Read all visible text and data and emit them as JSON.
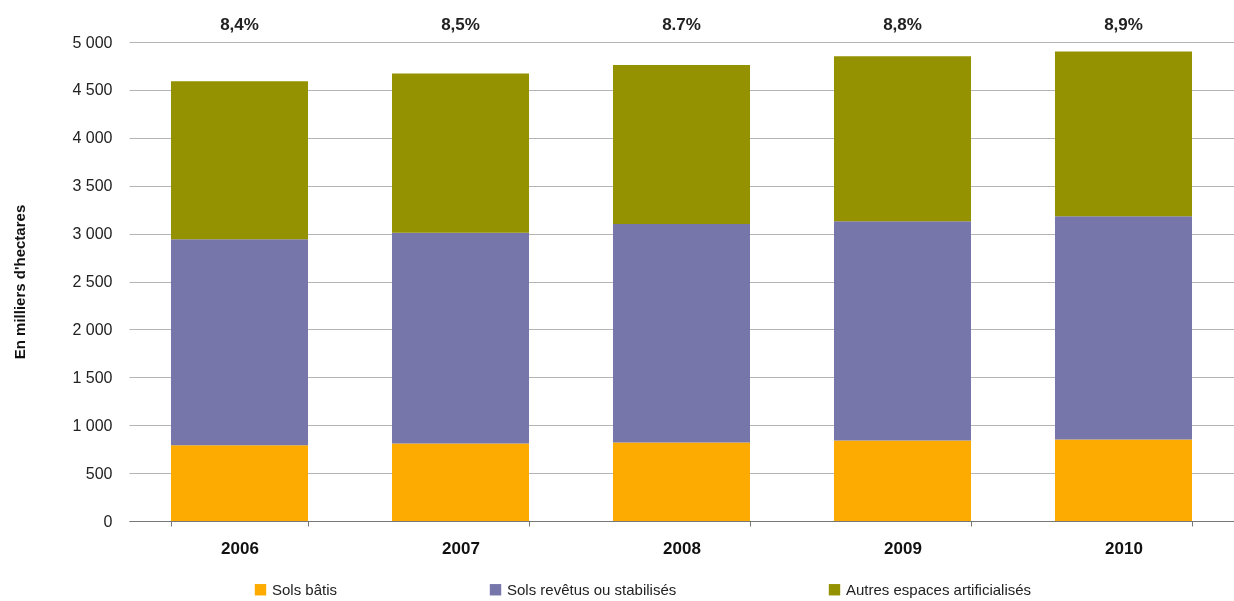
{
  "chart_data": {
    "type": "bar",
    "stacked": true,
    "ylabel": "En milliers d'hectares",
    "categories": [
      "2006",
      "2007",
      "2008",
      "2009",
      "2010"
    ],
    "series": [
      {
        "name": "Sols bâtis",
        "color": "#fdab00",
        "values": [
          790,
          810,
          820,
          840,
          850
        ]
      },
      {
        "name": "Sols revêtus ou stabilisés",
        "color": "#7676aa",
        "values": [
          2150,
          2200,
          2280,
          2290,
          2330
        ]
      },
      {
        "name": "Autres espaces artificialisés",
        "color": "#949200",
        "values": [
          1650,
          1660,
          1660,
          1720,
          1720
        ]
      }
    ],
    "ylim": [
      0,
      5000
    ],
    "yticks": [
      0,
      500,
      {
        "value": 1000,
        "label": "1 000"
      },
      {
        "value": 1500,
        "label": "1 500"
      },
      {
        "value": 2000,
        "label": "2 000"
      },
      {
        "value": 2500,
        "label": "2 500"
      },
      {
        "value": 3000,
        "label": "3 000"
      },
      {
        "value": 3500,
        "label": "3 500"
      },
      {
        "value": 4000,
        "label": "4 000"
      },
      {
        "value": 4500,
        "label": "4 500"
      },
      {
        "value": 5000,
        "label": "5 000"
      }
    ],
    "grid": "y",
    "legend": "bottom",
    "annotations": [
      "8,4%",
      "8,5%",
      "8.7%",
      "8,8%",
      "8,9%"
    ]
  }
}
